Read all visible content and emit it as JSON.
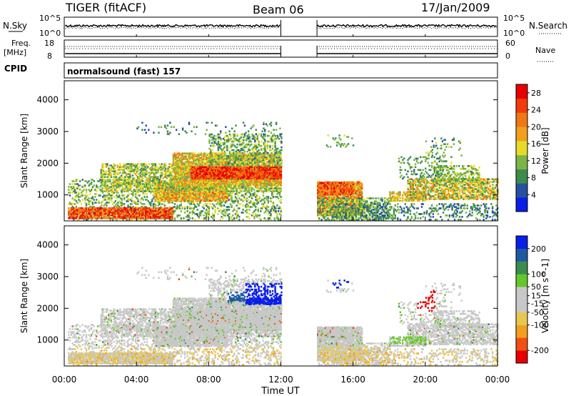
{
  "header": {
    "radar": "TIGER (fitACF)",
    "beam": "Beam 06",
    "date": "17/Jan/2009"
  },
  "strip_labels": {
    "nsky": "N.Sky",
    "nsearch": "N.Search",
    "freq": "Freq.",
    "freq_unit": "[MHz]",
    "nave": "Nave",
    "cpid": "CPID",
    "cpid_value": "normalsound (fast) 157"
  },
  "strip_ticks": {
    "noise_left": [
      "10^5",
      "10^0"
    ],
    "noise_right": [
      "10^5",
      "10^0"
    ],
    "freq_left": [
      "18",
      "8"
    ],
    "nave_right": [
      "60",
      "0"
    ]
  },
  "colors": {
    "power_scale": [
      "#0a1ee6",
      "#2850a0",
      "#3c8c50",
      "#7cb446",
      "#e6dc28",
      "#f0a01e",
      "#f07814",
      "#f03c0a",
      "#e60000"
    ],
    "velocity_scale": [
      "#e60000",
      "#f05014",
      "#f0a01e",
      "#e6c850",
      "#c8c8c8",
      "#c8c8c8",
      "#64c828",
      "#3c8c50",
      "#1e5aa0",
      "#0a1ee6"
    ]
  },
  "chart_data": [
    {
      "type": "heatmap",
      "panel": "power",
      "ylabel": "Slant Range [km]",
      "xlabel": "Time UT",
      "x_ticks": [
        "00:00",
        "04:00",
        "08:00",
        "12:00",
        "16:00",
        "20:00",
        "00:00"
      ],
      "y_ticks": [
        1000,
        2000,
        3000,
        4000
      ],
      "ylim": [
        180,
        4600
      ],
      "xlim_hours": [
        0,
        24
      ],
      "data_gap_hours": [
        12.0,
        14.0
      ],
      "colorbar": {
        "label": "Power [dB]",
        "ticks": [
          4,
          8,
          12,
          16,
          20,
          24,
          28
        ],
        "range": [
          0,
          30
        ]
      }
    },
    {
      "type": "heatmap",
      "panel": "velocity",
      "ylabel": "Slant Range [km]",
      "xlabel": "Time UT",
      "x_ticks": [
        "00:00",
        "04:00",
        "08:00",
        "12:00",
        "16:00",
        "20:00",
        "00:00"
      ],
      "y_ticks": [
        1000,
        2000,
        3000,
        4000
      ],
      "ylim": [
        180,
        4600
      ],
      "xlim_hours": [
        0,
        24
      ],
      "data_gap_hours": [
        12.0,
        14.0
      ],
      "colorbar": {
        "label": "Velocity [m s^-1]",
        "ticks": [
          200,
          100,
          50,
          15,
          -15,
          -50,
          -100,
          -200
        ],
        "range": [
          -250,
          250
        ]
      }
    }
  ]
}
